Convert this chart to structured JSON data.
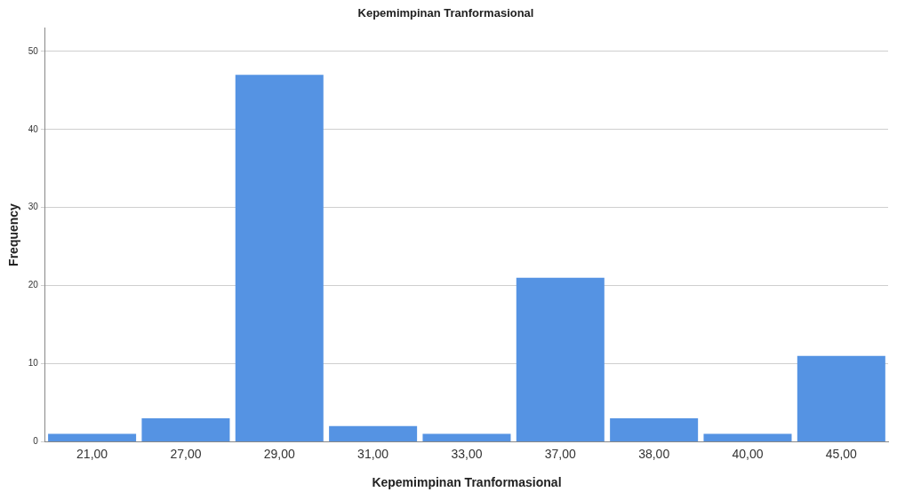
{
  "chart_data": {
    "type": "bar",
    "title": "Kepemimpinan Tranformasional",
    "xlabel": "Kepemimpinan Tranformasional",
    "ylabel": "Frequency",
    "categories": [
      "21,00",
      "27,00",
      "29,00",
      "31,00",
      "33,00",
      "37,00",
      "38,00",
      "40,00",
      "45,00"
    ],
    "values": [
      1,
      3,
      47,
      2,
      1,
      21,
      3,
      1,
      11
    ],
    "color": "#5593e3",
    "ylim": [
      0,
      53
    ],
    "yticks": [
      0,
      10,
      20,
      30,
      40,
      50
    ],
    "grid": "y",
    "legend": false
  }
}
